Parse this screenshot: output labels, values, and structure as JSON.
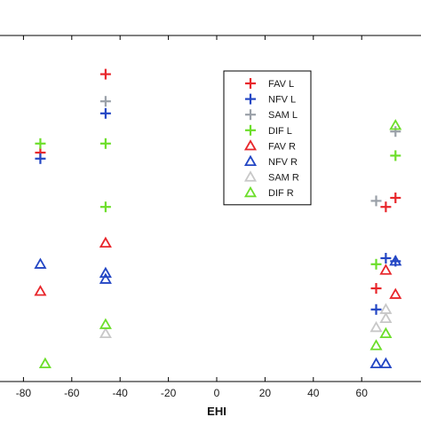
{
  "chart_data": {
    "type": "scatter",
    "title": "",
    "xlabel": "EHI",
    "ylabel": "",
    "xlim": [
      -80,
      80
    ],
    "ylim": [
      0,
      100
    ],
    "xticks": [
      -80,
      -60,
      -40,
      -20,
      0,
      20,
      40,
      60
    ],
    "xtick_labels": [
      "-80",
      "-60",
      "-40",
      "-20",
      "0",
      "20",
      "40",
      "60"
    ],
    "grid": false,
    "legend_position": "top-right",
    "series": [
      {
        "name": "FAV L",
        "marker": "plus",
        "color": "#e8262b",
        "points": [
          [
            -73,
            70
          ],
          [
            -46,
            96
          ],
          [
            66,
            25
          ],
          [
            70,
            52
          ],
          [
            74,
            55
          ]
        ]
      },
      {
        "name": "NFV L",
        "marker": "plus",
        "color": "#2346c4",
        "points": [
          [
            -73,
            68
          ],
          [
            -46,
            83
          ],
          [
            66,
            18
          ],
          [
            70,
            35
          ],
          [
            74,
            34
          ]
        ]
      },
      {
        "name": "SAM L",
        "marker": "plus",
        "color": "#9aa0a8",
        "points": [
          [
            -46,
            87
          ],
          [
            66,
            54
          ],
          [
            74,
            77
          ]
        ]
      },
      {
        "name": "DIF L",
        "marker": "plus",
        "color": "#6cde2a",
        "points": [
          [
            -73,
            73
          ],
          [
            -46,
            73
          ],
          [
            -46,
            52
          ],
          [
            66,
            33
          ],
          [
            74,
            69
          ]
        ]
      },
      {
        "name": "FAV R",
        "marker": "triangle",
        "color": "#e8262b",
        "points": [
          [
            -73,
            24
          ],
          [
            -46,
            40
          ],
          [
            70,
            31
          ],
          [
            74,
            23
          ]
        ]
      },
      {
        "name": "NFV R",
        "marker": "triangle",
        "color": "#2346c4",
        "points": [
          [
            -73,
            33
          ],
          [
            -46,
            30
          ],
          [
            -46,
            28
          ],
          [
            66,
            0
          ],
          [
            70,
            0
          ],
          [
            74,
            34
          ]
        ]
      },
      {
        "name": "SAM R",
        "marker": "triangle",
        "color": "#c8c8c8",
        "points": [
          [
            -46,
            10
          ],
          [
            66,
            12
          ],
          [
            70,
            15
          ],
          [
            70,
            18
          ]
        ]
      },
      {
        "name": "DIF R",
        "marker": "triangle",
        "color": "#6cde2a",
        "points": [
          [
            -71,
            0
          ],
          [
            -46,
            13
          ],
          [
            66,
            6
          ],
          [
            70,
            10
          ],
          [
            74,
            79
          ]
        ]
      }
    ]
  }
}
